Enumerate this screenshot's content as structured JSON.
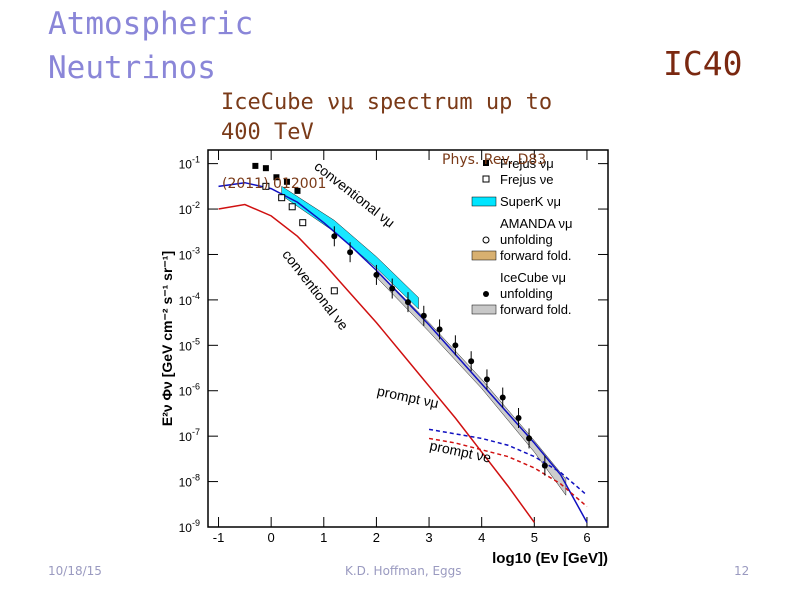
{
  "slide": {
    "title_line1": "Atmospheric",
    "title_line2": "Neutrinos",
    "tag": "IC40",
    "subtitle": "IceCube νμ spectrum up to 400 TeV",
    "ref_line1": "Phys. Rev. D83",
    "ref_line2": "(2011) 012001",
    "date": "10/18/15",
    "author": "K.D. Hoffman, Eggs",
    "page": "12"
  },
  "colors": {
    "title": "#8a86d8",
    "tag": "#7a2810",
    "subtitle": "#7a3a18",
    "conventional_numu": "#1010c0",
    "conventional_nue": "#d01010",
    "superk_band": "#00e5ff",
    "amanda_band": "#d8b070",
    "icecube_band": "#c8c8c8"
  },
  "chart_data": {
    "type": "line",
    "xlabel": "log10 (Eν [GeV])",
    "ylabel": "E²ν Φν [GeV cm⁻² s⁻¹ sr⁻¹]",
    "xlim": [
      -1.2,
      6.4
    ],
    "ylim": [
      -9,
      -0.7
    ],
    "y_log_scale": true,
    "x_ticks": [
      "-1",
      "0",
      "1",
      "2",
      "3",
      "4",
      "5",
      "6"
    ],
    "y_ticks": [
      "10^-1",
      "10^-2",
      "10^-3",
      "10^-4",
      "10^-5",
      "10^-6",
      "10^-7",
      "10^-8",
      "10^-9"
    ],
    "curve_labels": [
      "conventional νμ",
      "conventional νe",
      "prompt νμ",
      "prompt νe"
    ],
    "legend": [
      {
        "label": "Frejus νμ",
        "marker": "filled-square"
      },
      {
        "label": "Frejus νe",
        "marker": "open-square"
      },
      {
        "label": "SuperK νμ",
        "marker": "cyan-band"
      },
      {
        "label": "AMANDA νμ",
        "marker": "none"
      },
      {
        "label": "unfolding",
        "marker": "open-circle"
      },
      {
        "label": "forward fold.",
        "marker": "tan-band"
      },
      {
        "label": "IceCube νμ",
        "marker": "none"
      },
      {
        "label": "unfolding",
        "marker": "filled-circle"
      },
      {
        "label": "forward fold.",
        "marker": "gray-band"
      }
    ],
    "series": [
      {
        "id": "conventional_numu",
        "style": "solid",
        "color": "#1010c0",
        "x": [
          -1.0,
          -0.5,
          0,
          0.5,
          1.0,
          1.5,
          2.0,
          2.5,
          3.0,
          3.5,
          4.0,
          4.5,
          5.0,
          5.5,
          6.0
        ],
        "y": [
          -1.5,
          -1.42,
          -1.55,
          -1.85,
          -2.3,
          -2.8,
          -3.35,
          -3.95,
          -4.55,
          -5.2,
          -5.85,
          -6.5,
          -7.15,
          -7.85,
          -8.9
        ]
      },
      {
        "id": "conventional_nue",
        "style": "solid",
        "color": "#d01010",
        "x": [
          -1.0,
          -0.5,
          0,
          0.5,
          1.0,
          1.5,
          2.0,
          2.5,
          3.0,
          3.5,
          4.0,
          4.5,
          5.0
        ],
        "y": [
          -2.0,
          -1.9,
          -2.15,
          -2.6,
          -3.2,
          -3.85,
          -4.5,
          -5.2,
          -5.9,
          -6.6,
          -7.35,
          -8.1,
          -8.9
        ]
      },
      {
        "id": "prompt_numu",
        "style": "dashed",
        "color": "#1010c0",
        "x": [
          3.0,
          3.5,
          4.0,
          4.5,
          5.0,
          5.5,
          6.0
        ],
        "y": [
          -6.85,
          -6.95,
          -7.05,
          -7.2,
          -7.45,
          -7.8,
          -8.3
        ]
      },
      {
        "id": "prompt_nue",
        "style": "dashed",
        "color": "#d01010",
        "x": [
          3.0,
          3.5,
          4.0,
          4.5,
          5.0,
          5.5,
          6.0
        ],
        "y": [
          -7.05,
          -7.15,
          -7.3,
          -7.45,
          -7.7,
          -8.05,
          -8.55
        ]
      }
    ],
    "frejus_numu": {
      "x": [
        -0.3,
        -0.1,
        0.1,
        0.3,
        0.5
      ],
      "y": [
        -1.05,
        -1.1,
        -1.3,
        -1.4,
        -1.6
      ]
    },
    "frejus_nue": {
      "x": [
        -0.1,
        0.2,
        0.4,
        0.6,
        1.2
      ],
      "y": [
        -1.5,
        -1.75,
        -1.95,
        -2.3,
        -3.8
      ]
    },
    "icecube_unfolding": {
      "x": [
        1.2,
        1.5,
        2.0,
        2.3,
        2.6,
        2.9,
        3.2,
        3.5,
        3.8,
        4.1,
        4.4,
        4.7,
        4.9,
        5.2
      ],
      "y": [
        -2.6,
        -2.95,
        -3.45,
        -3.75,
        -4.05,
        -4.35,
        -4.65,
        -5.0,
        -5.35,
        -5.75,
        -6.15,
        -6.6,
        -7.05,
        -7.65
      ]
    },
    "bands": {
      "superk": {
        "x": [
          0.2,
          1.2,
          2.0,
          2.8
        ],
        "y_low": [
          -1.7,
          -2.5,
          -3.3,
          -4.2
        ],
        "y_high": [
          -1.5,
          -2.25,
          -3.05,
          -3.95
        ]
      },
      "icecube_forward": {
        "x": [
          2.0,
          3.0,
          4.0,
          5.0,
          5.6
        ],
        "y_low": [
          -3.5,
          -4.7,
          -5.95,
          -7.35,
          -8.3
        ],
        "y_high": [
          -3.35,
          -4.5,
          -5.75,
          -7.1,
          -7.95
        ]
      }
    }
  }
}
